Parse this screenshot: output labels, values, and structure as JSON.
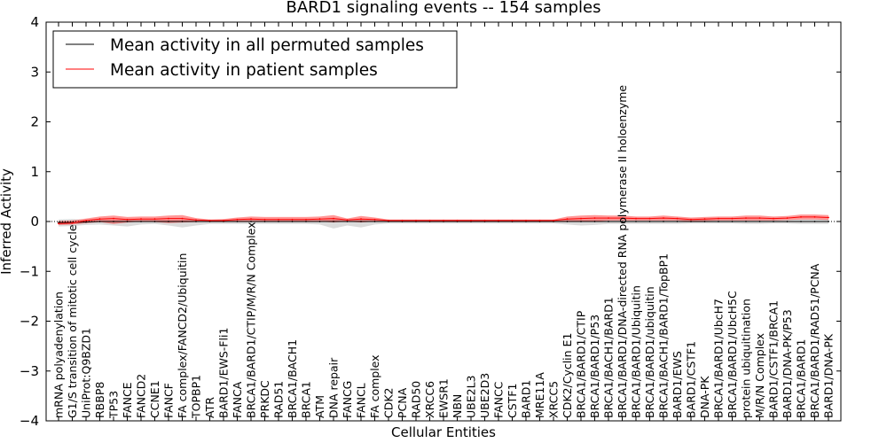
{
  "chart_data": {
    "type": "line",
    "title": "BARD1 signaling events -- 154 samples",
    "xlabel": "Cellular Entities",
    "ylabel": "Inferred Activity",
    "ylim": [
      -4,
      4
    ],
    "yticks": [
      4,
      3,
      2,
      1,
      0,
      -1,
      -2,
      -3,
      -4
    ],
    "ytick_labels": [
      "4",
      "3",
      "2",
      "1",
      "0",
      "−1",
      "−2",
      "−3",
      "−4"
    ],
    "legend": {
      "position": "top-left",
      "entries": [
        {
          "label": "Mean activity in all permuted samples",
          "color": "#000000"
        },
        {
          "label": "Mean activity in patient samples",
          "color": "#ff0000"
        }
      ]
    },
    "categories": [
      "mRNA polyadenylation",
      "G1/S transition of mitotic cell cycle",
      "UniProt:Q9BZD1",
      "RBBP8",
      "TP53",
      "FANCE",
      "FANCD2",
      "CCNE1",
      "FANCF",
      "FA complex/FANCD2/Ubiquitin",
      "TOPBP1",
      "ATR",
      "BARD1/EWS-Fli1",
      "FANCA",
      "BRCA1/BARD1/CTIP/M/R/N Complex",
      "PRKDC",
      "RAD51",
      "BRCA1/BACH1",
      "BRCA1",
      "ATM",
      "DNA repair",
      "FANCG",
      "FANCL",
      "FA complex",
      "CDK2",
      "PCNA",
      "RAD50",
      "XRCC6",
      "EWSR1",
      "NBN",
      "UBE2L3",
      "UBE2D3",
      "FANCC",
      "CSTF1",
      "BARD1",
      "MRE11A",
      "XRCC5",
      "CDK2/Cyclin E1",
      "BRCA1/BARD1/CTIP",
      "BRCA1/BARD1/P53",
      "BRCA1/BACH1/BARD1",
      "BRCA1/BARD1/DNA-directed RNA polymerase II holoenzyme",
      "BRCA1/BARD1/Ubiquitin",
      "BRCA1/BARD1/ubiquitin",
      "BRCA1/BACH1/BARD1/TopBP1",
      "BARD1/EWS",
      "BARD1/CSTF1",
      "DNA-PK",
      "BRCA1/BARD1/UbcH7",
      "BRCA1/BARD1/UbcH5C",
      "protein ubiquitination",
      "M/R/N Complex",
      "BARD1/CSTF1/BRCA1",
      "BARD1/DNA-PK/P53",
      "BRCA1/BARD1",
      "BRCA1/BARD1/RAD51/PCNA",
      "BARD1/DNA-PK"
    ],
    "series": [
      {
        "name": "Mean activity in all permuted samples",
        "color": "#000000",
        "values": [
          -0.02,
          -0.02,
          -0.01,
          0,
          0,
          0,
          0,
          0,
          0,
          0,
          0,
          0,
          0,
          0,
          0,
          0,
          0,
          0,
          0,
          0,
          0,
          0,
          0,
          0,
          0,
          0,
          0,
          0,
          0,
          0,
          0,
          0,
          0,
          0,
          0,
          0,
          0,
          0,
          0,
          0,
          0,
          0,
          0,
          0,
          0,
          0,
          0,
          0,
          0,
          0,
          0,
          0,
          0,
          0,
          0,
          0,
          0
        ],
        "band_low": [
          -0.1,
          -0.09,
          -0.07,
          -0.06,
          -0.08,
          -0.1,
          -0.06,
          -0.05,
          -0.08,
          -0.12,
          -0.08,
          -0.05,
          -0.05,
          -0.05,
          -0.05,
          -0.05,
          -0.05,
          -0.05,
          -0.05,
          -0.06,
          -0.14,
          -0.08,
          -0.12,
          -0.06,
          -0.04,
          -0.04,
          -0.04,
          -0.04,
          -0.04,
          -0.04,
          -0.04,
          -0.04,
          -0.04,
          -0.04,
          -0.04,
          -0.04,
          -0.04,
          -0.06,
          -0.08,
          -0.07,
          -0.05,
          -0.05,
          -0.05,
          -0.05,
          -0.05,
          -0.05,
          -0.04,
          -0.04,
          -0.04,
          -0.04,
          -0.05,
          -0.05,
          -0.04,
          -0.04,
          -0.05,
          -0.05,
          -0.05
        ],
        "band_high": [
          0.04,
          0.05,
          0.03,
          0.03,
          0.03,
          0.03,
          0.03,
          0.03,
          0.03,
          0.03,
          0.03,
          0.03,
          0.03,
          0.03,
          0.03,
          0.03,
          0.03,
          0.03,
          0.03,
          0.03,
          0.05,
          0.03,
          0.04,
          0.03,
          0.03,
          0.03,
          0.03,
          0.03,
          0.03,
          0.03,
          0.03,
          0.03,
          0.03,
          0.03,
          0.03,
          0.03,
          0.03,
          0.04,
          0.04,
          0.04,
          0.04,
          0.04,
          0.04,
          0.04,
          0.04,
          0.04,
          0.04,
          0.04,
          0.04,
          0.04,
          0.04,
          0.04,
          0.04,
          0.04,
          0.05,
          0.05,
          0.05
        ]
      },
      {
        "name": "Mean activity in patient samples",
        "color": "#ff0000",
        "values": [
          -0.04,
          -0.03,
          0.02,
          0.05,
          0.06,
          0.04,
          0.05,
          0.05,
          0.06,
          0.06,
          0.03,
          0.02,
          0.02,
          0.04,
          0.05,
          0.04,
          0.04,
          0.04,
          0.04,
          0.05,
          0.06,
          0.03,
          0.05,
          0.04,
          0.02,
          0.02,
          0.02,
          0.02,
          0.02,
          0.02,
          0.02,
          0.02,
          0.02,
          0.02,
          0.02,
          0.02,
          0.02,
          0.05,
          0.06,
          0.07,
          0.07,
          0.07,
          0.06,
          0.06,
          0.07,
          0.06,
          0.04,
          0.05,
          0.06,
          0.06,
          0.07,
          0.07,
          0.06,
          0.07,
          0.09,
          0.09,
          0.08
        ],
        "band_low": [
          -0.07,
          -0.06,
          -0.03,
          -0.01,
          -0.05,
          -0.02,
          0,
          -0.01,
          -0.03,
          -0.02,
          -0.01,
          0,
          0,
          0,
          0,
          0,
          0,
          0,
          0,
          0,
          -0.02,
          0,
          -0.02,
          0,
          0,
          0,
          0,
          0,
          0,
          0,
          0,
          0,
          0,
          0,
          0,
          0,
          0,
          0,
          0,
          0,
          0.02,
          0.02,
          0.02,
          0.02,
          0.02,
          0.02,
          0,
          0.01,
          0.02,
          0.02,
          0.02,
          0.02,
          0.02,
          0.03,
          0.04,
          0.04,
          0.03
        ],
        "band_high": [
          0.01,
          0.02,
          0.06,
          0.1,
          0.12,
          0.09,
          0.1,
          0.1,
          0.12,
          0.13,
          0.07,
          0.04,
          0.05,
          0.08,
          0.1,
          0.09,
          0.09,
          0.09,
          0.09,
          0.1,
          0.13,
          0.06,
          0.11,
          0.08,
          0.04,
          0.04,
          0.04,
          0.04,
          0.04,
          0.04,
          0.04,
          0.04,
          0.04,
          0.04,
          0.04,
          0.04,
          0.04,
          0.1,
          0.12,
          0.13,
          0.12,
          0.12,
          0.1,
          0.1,
          0.12,
          0.1,
          0.08,
          0.09,
          0.1,
          0.1,
          0.12,
          0.12,
          0.1,
          0.11,
          0.14,
          0.14,
          0.13
        ]
      }
    ]
  }
}
